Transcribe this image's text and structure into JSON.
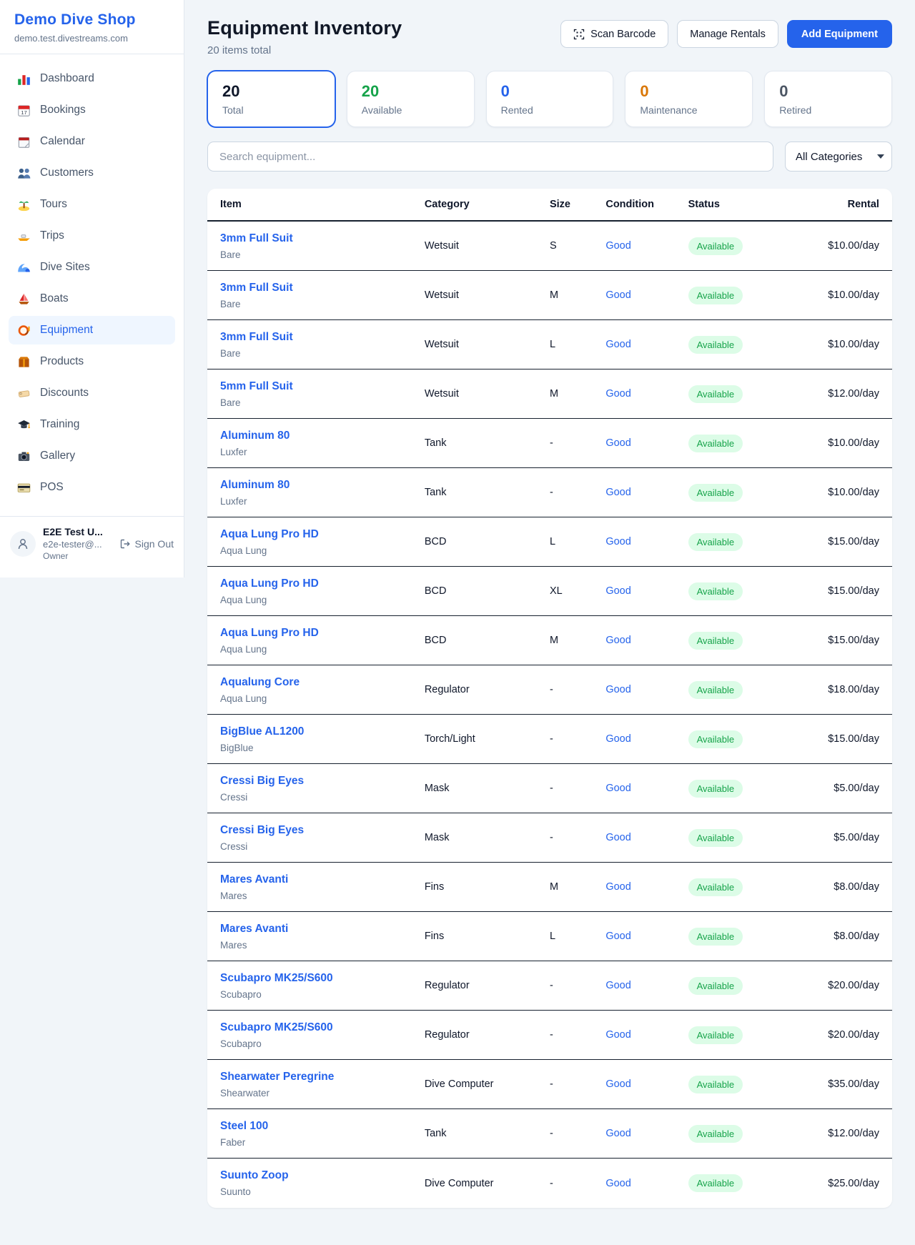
{
  "sidebar": {
    "brand": {
      "name": "Demo Dive Shop",
      "domain": "demo.test.divestreams.com"
    },
    "items": [
      {
        "label": "Dashboard",
        "icon": "bar-chart-icon"
      },
      {
        "label": "Bookings",
        "icon": "calendar-icon"
      },
      {
        "label": "Calendar",
        "icon": "spiral-calendar-icon"
      },
      {
        "label": "Customers",
        "icon": "people-icon"
      },
      {
        "label": "Tours",
        "icon": "island-icon"
      },
      {
        "label": "Trips",
        "icon": "speedboat-icon"
      },
      {
        "label": "Dive Sites",
        "icon": "wave-icon"
      },
      {
        "label": "Boats",
        "icon": "sailboat-icon"
      },
      {
        "label": "Equipment",
        "icon": "dive-mask-icon",
        "active": true
      },
      {
        "label": "Products",
        "icon": "package-icon"
      },
      {
        "label": "Discounts",
        "icon": "tag-icon"
      },
      {
        "label": "Training",
        "icon": "graduation-cap-icon"
      },
      {
        "label": "Gallery",
        "icon": "camera-icon"
      },
      {
        "label": "POS",
        "icon": "credit-card-icon"
      }
    ],
    "user": {
      "name": "E2E Test U...",
      "email": "e2e-tester@...",
      "role": "Owner",
      "sign_out_label": "Sign Out"
    }
  },
  "header": {
    "title": "Equipment Inventory",
    "subtitle": "20 items total",
    "scan_barcode_label": "Scan Barcode",
    "manage_rentals_label": "Manage Rentals",
    "add_equipment_label": "Add Equipment"
  },
  "stats": [
    {
      "value": "20",
      "label": "Total",
      "color": "#0f172a",
      "selected": true
    },
    {
      "value": "20",
      "label": "Available",
      "color": "#16a34a"
    },
    {
      "value": "0",
      "label": "Rented",
      "color": "#2563eb"
    },
    {
      "value": "0",
      "label": "Maintenance",
      "color": "#d97706"
    },
    {
      "value": "0",
      "label": "Retired",
      "color": "#4b5563"
    }
  ],
  "filters": {
    "search_placeholder": "Search equipment...",
    "category_selected": "All Categories"
  },
  "table": {
    "columns": [
      "Item",
      "Category",
      "Size",
      "Condition",
      "Status",
      "Rental"
    ],
    "rows": [
      {
        "name": "3mm Full Suit",
        "brand": "Bare",
        "category": "Wetsuit",
        "size": "S",
        "condition": "Good",
        "status": "Available",
        "rental": "$10.00/day"
      },
      {
        "name": "3mm Full Suit",
        "brand": "Bare",
        "category": "Wetsuit",
        "size": "M",
        "condition": "Good",
        "status": "Available",
        "rental": "$10.00/day"
      },
      {
        "name": "3mm Full Suit",
        "brand": "Bare",
        "category": "Wetsuit",
        "size": "L",
        "condition": "Good",
        "status": "Available",
        "rental": "$10.00/day"
      },
      {
        "name": "5mm Full Suit",
        "brand": "Bare",
        "category": "Wetsuit",
        "size": "M",
        "condition": "Good",
        "status": "Available",
        "rental": "$12.00/day"
      },
      {
        "name": "Aluminum 80",
        "brand": "Luxfer",
        "category": "Tank",
        "size": "-",
        "condition": "Good",
        "status": "Available",
        "rental": "$10.00/day"
      },
      {
        "name": "Aluminum 80",
        "brand": "Luxfer",
        "category": "Tank",
        "size": "-",
        "condition": "Good",
        "status": "Available",
        "rental": "$10.00/day"
      },
      {
        "name": "Aqua Lung Pro HD",
        "brand": "Aqua Lung",
        "category": "BCD",
        "size": "L",
        "condition": "Good",
        "status": "Available",
        "rental": "$15.00/day"
      },
      {
        "name": "Aqua Lung Pro HD",
        "brand": "Aqua Lung",
        "category": "BCD",
        "size": "XL",
        "condition": "Good",
        "status": "Available",
        "rental": "$15.00/day"
      },
      {
        "name": "Aqua Lung Pro HD",
        "brand": "Aqua Lung",
        "category": "BCD",
        "size": "M",
        "condition": "Good",
        "status": "Available",
        "rental": "$15.00/day"
      },
      {
        "name": "Aqualung Core",
        "brand": "Aqua Lung",
        "category": "Regulator",
        "size": "-",
        "condition": "Good",
        "status": "Available",
        "rental": "$18.00/day"
      },
      {
        "name": "BigBlue AL1200",
        "brand": "BigBlue",
        "category": "Torch/Light",
        "size": "-",
        "condition": "Good",
        "status": "Available",
        "rental": "$15.00/day"
      },
      {
        "name": "Cressi Big Eyes",
        "brand": "Cressi",
        "category": "Mask",
        "size": "-",
        "condition": "Good",
        "status": "Available",
        "rental": "$5.00/day"
      },
      {
        "name": "Cressi Big Eyes",
        "brand": "Cressi",
        "category": "Mask",
        "size": "-",
        "condition": "Good",
        "status": "Available",
        "rental": "$5.00/day"
      },
      {
        "name": "Mares Avanti",
        "brand": "Mares",
        "category": "Fins",
        "size": "M",
        "condition": "Good",
        "status": "Available",
        "rental": "$8.00/day"
      },
      {
        "name": "Mares Avanti",
        "brand": "Mares",
        "category": "Fins",
        "size": "L",
        "condition": "Good",
        "status": "Available",
        "rental": "$8.00/day"
      },
      {
        "name": "Scubapro MK25/S600",
        "brand": "Scubapro",
        "category": "Regulator",
        "size": "-",
        "condition": "Good",
        "status": "Available",
        "rental": "$20.00/day"
      },
      {
        "name": "Scubapro MK25/S600",
        "brand": "Scubapro",
        "category": "Regulator",
        "size": "-",
        "condition": "Good",
        "status": "Available",
        "rental": "$20.00/day"
      },
      {
        "name": "Shearwater Peregrine",
        "brand": "Shearwater",
        "category": "Dive Computer",
        "size": "-",
        "condition": "Good",
        "status": "Available",
        "rental": "$35.00/day"
      },
      {
        "name": "Steel 100",
        "brand": "Faber",
        "category": "Tank",
        "size": "-",
        "condition": "Good",
        "status": "Available",
        "rental": "$12.00/day"
      },
      {
        "name": "Suunto Zoop",
        "brand": "Suunto",
        "category": "Dive Computer",
        "size": "-",
        "condition": "Good",
        "status": "Available",
        "rental": "$25.00/day"
      }
    ]
  },
  "colors": {
    "accent": "#2563eb",
    "available_green": "#16a34a",
    "badge_bg": "#dcfce7",
    "maintenance_orange": "#d97706"
  }
}
